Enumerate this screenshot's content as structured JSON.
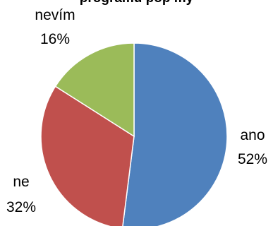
{
  "chart_data": {
    "type": "pie",
    "title": "programu pop my",
    "slices": [
      {
        "label": "ano",
        "value": 52,
        "value_label": "52%",
        "color": "#4F81BD"
      },
      {
        "label": "ne",
        "value": 32,
        "value_label": "32%",
        "color": "#C0504D"
      },
      {
        "label": "nevím",
        "value": 16,
        "value_label": "16%",
        "color": "#9BBB59"
      }
    ],
    "start_angle_deg": 0,
    "direction": "clockwise",
    "legend": "none"
  }
}
